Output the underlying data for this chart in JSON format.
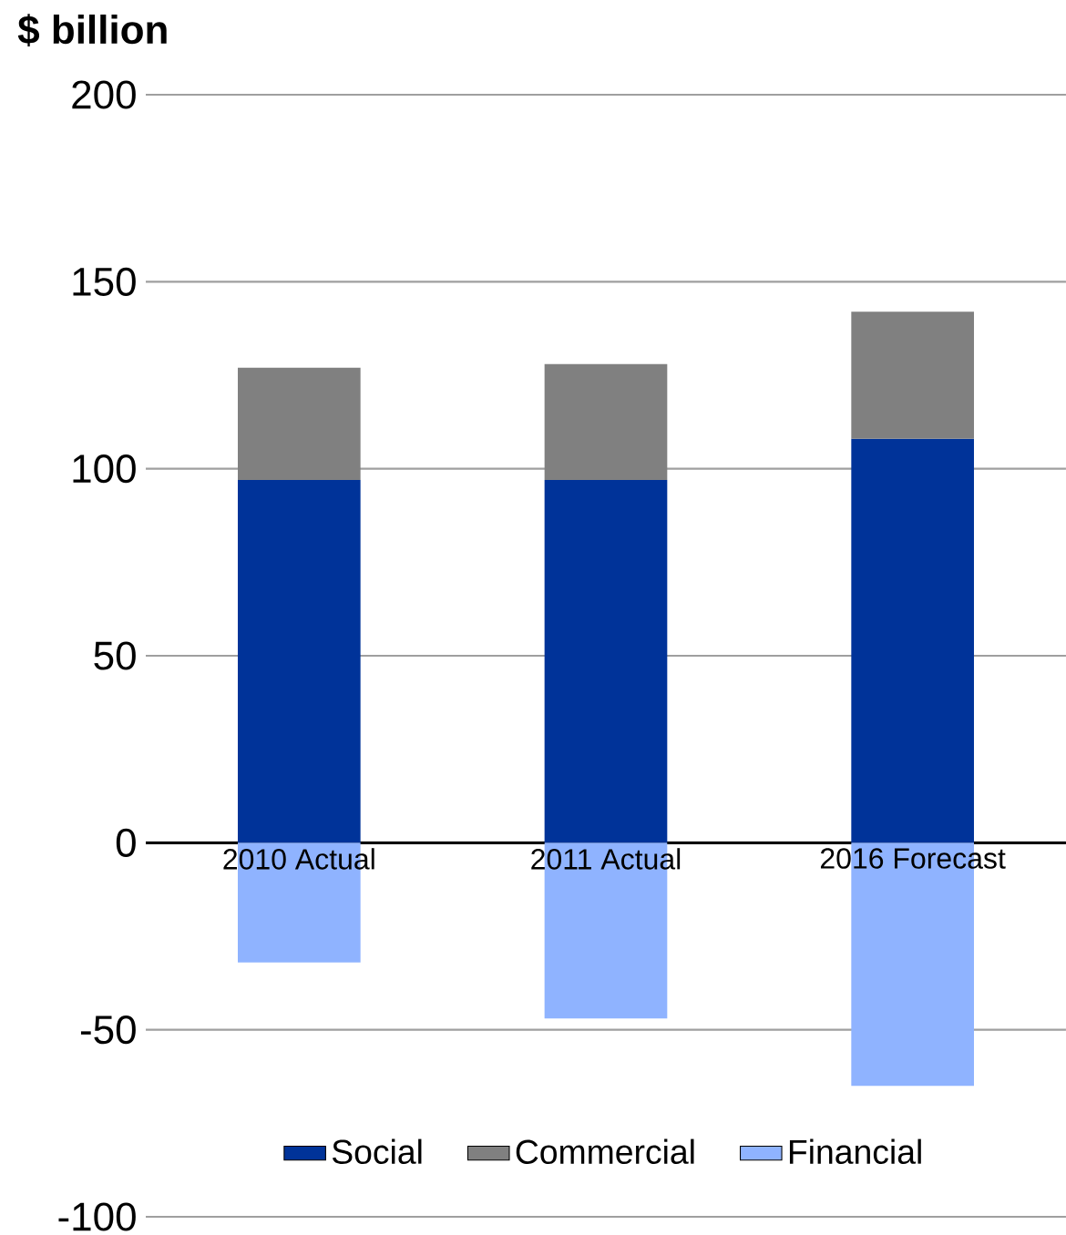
{
  "chart_data": {
    "type": "bar",
    "title": "$ billion",
    "categories": [
      "2010 Actual",
      "2011 Actual",
      "2016 Forecast"
    ],
    "series": [
      {
        "name": "Social",
        "color": "#003399",
        "values": [
          97,
          97,
          108
        ]
      },
      {
        "name": "Commercial",
        "color": "#808080",
        "values": [
          30,
          31,
          34
        ]
      },
      {
        "name": "Financial",
        "color": "#8fb3ff",
        "values": [
          -32,
          -47,
          -65
        ]
      }
    ],
    "stacked": true,
    "ylim": [
      -100,
      200
    ],
    "yticks": [
      -100,
      -50,
      0,
      50,
      100,
      150,
      200
    ],
    "grid": "y",
    "legend": "bottom"
  }
}
